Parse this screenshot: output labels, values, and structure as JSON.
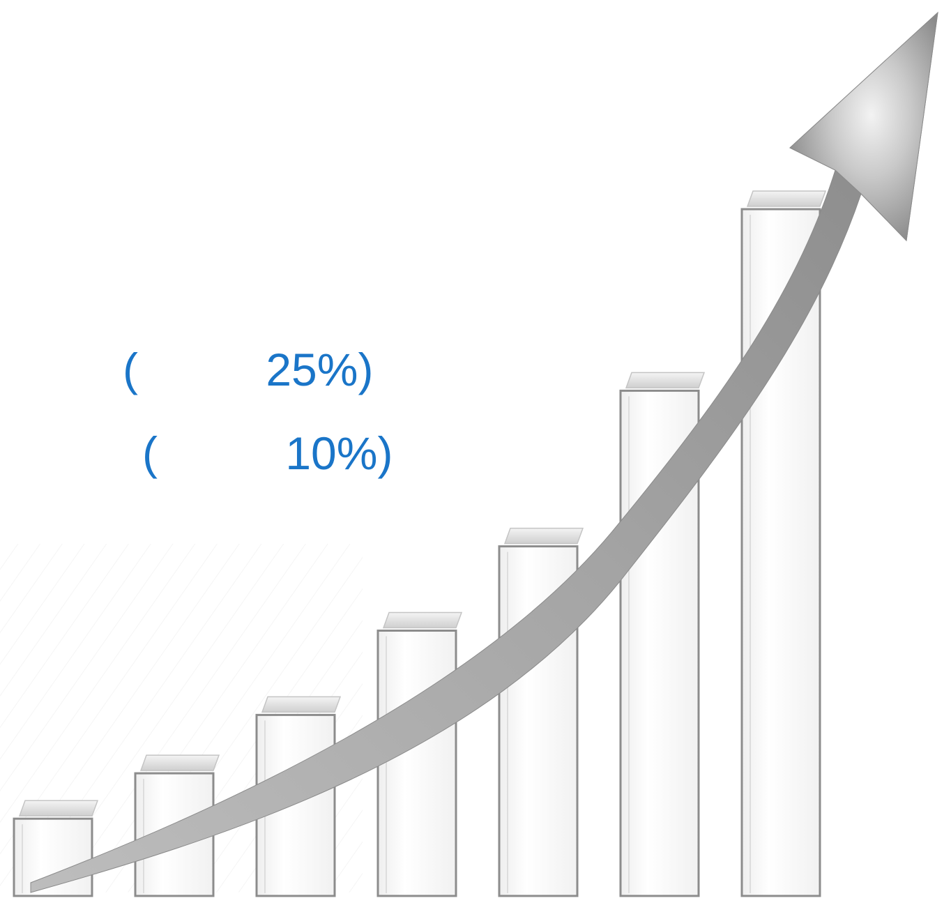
{
  "labels": [
    {
      "text": "(          25%)"
    },
    {
      "text": "(          10%)"
    }
  ],
  "colors": {
    "label": "#1a75c8",
    "bar_edge": "#8c8c8c",
    "bar_fill": "#fcfcfc",
    "arrow_dark": "#8e8e8e",
    "arrow_light": "#d9d9d9"
  },
  "graphic": {
    "bar_count": 7,
    "bar_levels": [
      0.06,
      0.13,
      0.22,
      0.35,
      0.48,
      0.72,
      1.0
    ],
    "arrow_icon": "growth-arrow-icon"
  }
}
